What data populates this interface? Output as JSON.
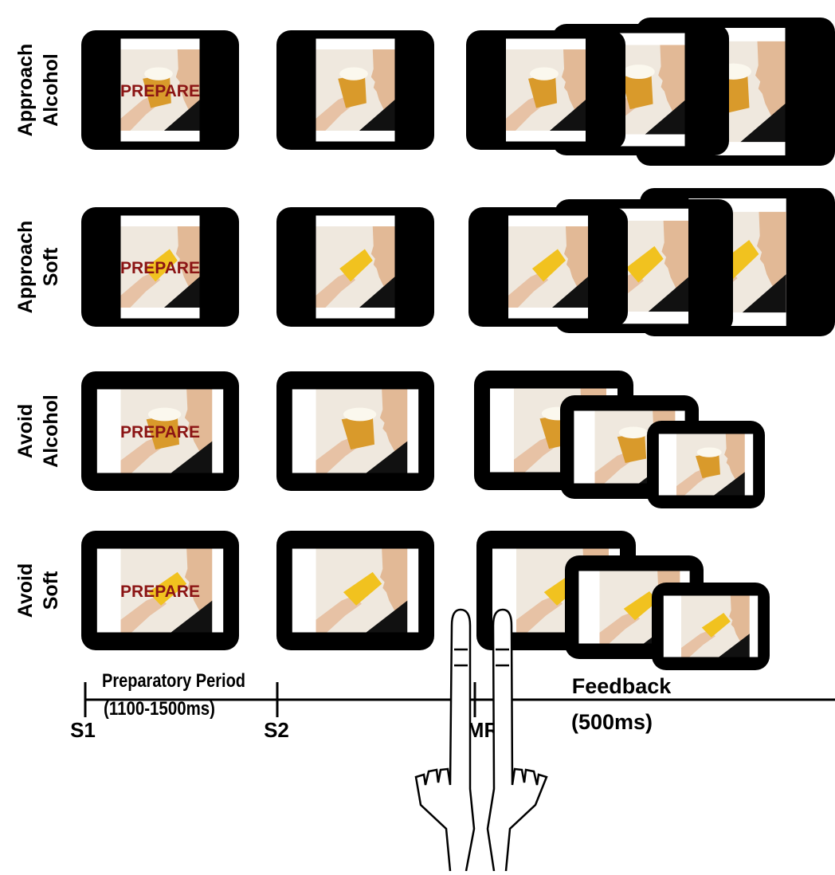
{
  "rows": [
    {
      "label": [
        "Approach",
        "Alcohol"
      ],
      "cue": "PREPARE"
    },
    {
      "label": [
        "Approach",
        "Soft"
      ],
      "cue": "PREPARE"
    },
    {
      "label": [
        "Avoid",
        "Alcohol"
      ],
      "cue": "PREPARE"
    },
    {
      "label": [
        "Avoid",
        "Soft"
      ],
      "cue": "PREPARE"
    }
  ],
  "timeline": {
    "period": "Preparatory Period",
    "period_duration": "(1100-1500ms)",
    "feedback": "Feedback",
    "feedback_duration": "(500ms)",
    "markers": [
      "S1",
      "S2",
      "MR"
    ]
  }
}
